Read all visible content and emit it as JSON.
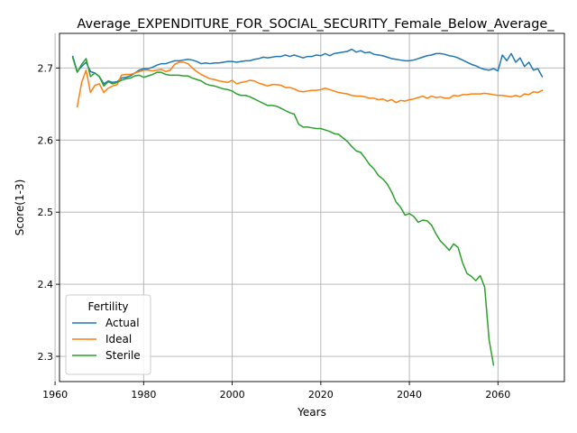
{
  "chart_data": {
    "type": "line",
    "title": "Average_EXPENDITURE_FOR_SOCIAL_SECURITY_Female_Below_Average_",
    "xlabel": "Years",
    "ylabel": "Score(1-3)",
    "xlim": [
      1961,
      2075
    ],
    "ylim": [
      2.265,
      2.748
    ],
    "xticks": [
      1960,
      1980,
      2000,
      2020,
      2040,
      2060
    ],
    "yticks": [
      2.3,
      2.4,
      2.5,
      2.6,
      2.7
    ],
    "xtick_labels": [
      "1960",
      "1980",
      "2000",
      "2020",
      "2040",
      "2060"
    ],
    "ytick_labels": [
      "2.3",
      "2.4",
      "2.5",
      "2.6",
      "2.7"
    ],
    "grid": true,
    "legend": {
      "title": "Fertility",
      "position": "lower-left"
    },
    "series": [
      {
        "name": "Actual",
        "color": "#1f77b4",
        "points": [
          [
            1964,
            2.716
          ],
          [
            1965,
            2.695
          ],
          [
            1966,
            2.702
          ],
          [
            1967,
            2.708
          ],
          [
            1968,
            2.695
          ],
          [
            1969,
            2.693
          ],
          [
            1970,
            2.688
          ],
          [
            1971,
            2.678
          ],
          [
            1972,
            2.682
          ],
          [
            1973,
            2.68
          ],
          [
            1974,
            2.681
          ],
          [
            1975,
            2.686
          ],
          [
            1976,
            2.687
          ],
          [
            1977,
            2.689
          ],
          [
            1978,
            2.693
          ],
          [
            1979,
            2.697
          ],
          [
            1980,
            2.699
          ],
          [
            1981,
            2.699
          ],
          [
            1982,
            2.701
          ],
          [
            1983,
            2.704
          ],
          [
            1984,
            2.706
          ],
          [
            1985,
            2.706
          ],
          [
            1986,
            2.708
          ],
          [
            1987,
            2.71
          ],
          [
            1988,
            2.71
          ],
          [
            1989,
            2.711
          ],
          [
            1990,
            2.712
          ],
          [
            1991,
            2.711
          ],
          [
            1992,
            2.709
          ],
          [
            1993,
            2.706
          ],
          [
            1994,
            2.707
          ],
          [
            1995,
            2.706
          ],
          [
            1996,
            2.707
          ],
          [
            1997,
            2.707
          ],
          [
            1998,
            2.708
          ],
          [
            1999,
            2.709
          ],
          [
            2000,
            2.709
          ],
          [
            2001,
            2.708
          ],
          [
            2002,
            2.709
          ],
          [
            2003,
            2.71
          ],
          [
            2004,
            2.71
          ],
          [
            2005,
            2.712
          ],
          [
            2006,
            2.713
          ],
          [
            2007,
            2.715
          ],
          [
            2008,
            2.714
          ],
          [
            2009,
            2.715
          ],
          [
            2010,
            2.716
          ],
          [
            2011,
            2.716
          ],
          [
            2012,
            2.718
          ],
          [
            2013,
            2.716
          ],
          [
            2014,
            2.718
          ],
          [
            2015,
            2.716
          ],
          [
            2016,
            2.714
          ],
          [
            2017,
            2.716
          ],
          [
            2018,
            2.716
          ],
          [
            2019,
            2.718
          ],
          [
            2020,
            2.717
          ],
          [
            2021,
            2.72
          ],
          [
            2022,
            2.717
          ],
          [
            2023,
            2.72
          ],
          [
            2024,
            2.721
          ],
          [
            2025,
            2.722
          ],
          [
            2026,
            2.723
          ],
          [
            2027,
            2.726
          ],
          [
            2028,
            2.722
          ],
          [
            2029,
            2.724
          ],
          [
            2030,
            2.721
          ],
          [
            2031,
            2.722
          ],
          [
            2032,
            2.719
          ],
          [
            2033,
            2.718
          ],
          [
            2034,
            2.717
          ],
          [
            2035,
            2.715
          ],
          [
            2036,
            2.713
          ],
          [
            2037,
            2.712
          ],
          [
            2038,
            2.711
          ],
          [
            2039,
            2.71
          ],
          [
            2040,
            2.71
          ],
          [
            2041,
            2.711
          ],
          [
            2042,
            2.713
          ],
          [
            2043,
            2.715
          ],
          [
            2044,
            2.717
          ],
          [
            2045,
            2.718
          ],
          [
            2046,
            2.72
          ],
          [
            2047,
            2.72
          ],
          [
            2048,
            2.719
          ],
          [
            2049,
            2.717
          ],
          [
            2050,
            2.716
          ],
          [
            2051,
            2.714
          ],
          [
            2052,
            2.711
          ],
          [
            2053,
            2.708
          ],
          [
            2054,
            2.705
          ],
          [
            2055,
            2.703
          ],
          [
            2056,
            2.7
          ],
          [
            2057,
            2.698
          ],
          [
            2058,
            2.697
          ],
          [
            2059,
            2.699
          ],
          [
            2060,
            2.696
          ],
          [
            2061,
            2.718
          ],
          [
            2062,
            2.71
          ],
          [
            2063,
            2.72
          ],
          [
            2064,
            2.708
          ],
          [
            2065,
            2.714
          ],
          [
            2066,
            2.702
          ],
          [
            2067,
            2.708
          ],
          [
            2068,
            2.697
          ],
          [
            2069,
            2.699
          ],
          [
            2070,
            2.688
          ]
        ]
      },
      {
        "name": "Ideal",
        "color": "#ff7f0e",
        "points": [
          [
            1965,
            2.646
          ],
          [
            1966,
            2.68
          ],
          [
            1967,
            2.697
          ],
          [
            1968,
            2.666
          ],
          [
            1969,
            2.676
          ],
          [
            1970,
            2.678
          ],
          [
            1971,
            2.666
          ],
          [
            1972,
            2.672
          ],
          [
            1973,
            2.675
          ],
          [
            1974,
            2.677
          ],
          [
            1975,
            2.69
          ],
          [
            1976,
            2.691
          ],
          [
            1977,
            2.691
          ],
          [
            1978,
            2.693
          ],
          [
            1979,
            2.695
          ],
          [
            1980,
            2.697
          ],
          [
            1981,
            2.697
          ],
          [
            1982,
            2.696
          ],
          [
            1983,
            2.697
          ],
          [
            1984,
            2.698
          ],
          [
            1985,
            2.695
          ],
          [
            1986,
            2.697
          ],
          [
            1987,
            2.705
          ],
          [
            1988,
            2.708
          ],
          [
            1989,
            2.708
          ],
          [
            1990,
            2.706
          ],
          [
            1991,
            2.7
          ],
          [
            1992,
            2.695
          ],
          [
            1993,
            2.691
          ],
          [
            1994,
            2.688
          ],
          [
            1995,
            2.685
          ],
          [
            1996,
            2.684
          ],
          [
            1997,
            2.682
          ],
          [
            1998,
            2.681
          ],
          [
            1999,
            2.68
          ],
          [
            2000,
            2.683
          ],
          [
            2001,
            2.678
          ],
          [
            2002,
            2.68
          ],
          [
            2003,
            2.681
          ],
          [
            2004,
            2.683
          ],
          [
            2005,
            2.682
          ],
          [
            2006,
            2.679
          ],
          [
            2007,
            2.677
          ],
          [
            2008,
            2.675
          ],
          [
            2009,
            2.677
          ],
          [
            2010,
            2.677
          ],
          [
            2011,
            2.676
          ],
          [
            2012,
            2.673
          ],
          [
            2013,
            2.673
          ],
          [
            2014,
            2.671
          ],
          [
            2015,
            2.668
          ],
          [
            2016,
            2.667
          ],
          [
            2017,
            2.668
          ],
          [
            2018,
            2.669
          ],
          [
            2019,
            2.669
          ],
          [
            2020,
            2.67
          ],
          [
            2021,
            2.672
          ],
          [
            2022,
            2.67
          ],
          [
            2023,
            2.668
          ],
          [
            2024,
            2.666
          ],
          [
            2025,
            2.665
          ],
          [
            2026,
            2.664
          ],
          [
            2027,
            2.662
          ],
          [
            2028,
            2.661
          ],
          [
            2029,
            2.661
          ],
          [
            2030,
            2.66
          ],
          [
            2031,
            2.658
          ],
          [
            2032,
            2.658
          ],
          [
            2033,
            2.656
          ],
          [
            2034,
            2.657
          ],
          [
            2035,
            2.654
          ],
          [
            2036,
            2.656
          ],
          [
            2037,
            2.652
          ],
          [
            2038,
            2.655
          ],
          [
            2039,
            2.654
          ],
          [
            2040,
            2.656
          ],
          [
            2041,
            2.657
          ],
          [
            2042,
            2.659
          ],
          [
            2043,
            2.661
          ],
          [
            2044,
            2.658
          ],
          [
            2045,
            2.661
          ],
          [
            2046,
            2.659
          ],
          [
            2047,
            2.66
          ],
          [
            2048,
            2.658
          ],
          [
            2049,
            2.658
          ],
          [
            2050,
            2.662
          ],
          [
            2051,
            2.661
          ],
          [
            2052,
            2.663
          ],
          [
            2053,
            2.663
          ],
          [
            2054,
            2.664
          ],
          [
            2055,
            2.664
          ],
          [
            2056,
            2.664
          ],
          [
            2057,
            2.665
          ],
          [
            2058,
            2.664
          ],
          [
            2059,
            2.663
          ],
          [
            2060,
            2.662
          ],
          [
            2061,
            2.662
          ],
          [
            2062,
            2.661
          ],
          [
            2063,
            2.66
          ],
          [
            2064,
            2.662
          ],
          [
            2065,
            2.66
          ],
          [
            2066,
            2.664
          ],
          [
            2067,
            2.663
          ],
          [
            2068,
            2.667
          ],
          [
            2069,
            2.666
          ],
          [
            2070,
            2.669
          ]
        ]
      },
      {
        "name": "Sterile",
        "color": "#2ca02c",
        "points": [
          [
            1964,
            2.714
          ],
          [
            1965,
            2.694
          ],
          [
            1966,
            2.705
          ],
          [
            1967,
            2.713
          ],
          [
            1968,
            2.688
          ],
          [
            1969,
            2.693
          ],
          [
            1970,
            2.688
          ],
          [
            1971,
            2.675
          ],
          [
            1972,
            2.681
          ],
          [
            1973,
            2.678
          ],
          [
            1974,
            2.68
          ],
          [
            1975,
            2.683
          ],
          [
            1976,
            2.685
          ],
          [
            1977,
            2.686
          ],
          [
            1978,
            2.689
          ],
          [
            1979,
            2.69
          ],
          [
            1980,
            2.687
          ],
          [
            1981,
            2.689
          ],
          [
            1982,
            2.691
          ],
          [
            1983,
            2.694
          ],
          [
            1984,
            2.694
          ],
          [
            1985,
            2.691
          ],
          [
            1986,
            2.69
          ],
          [
            1987,
            2.69
          ],
          [
            1988,
            2.69
          ],
          [
            1989,
            2.689
          ],
          [
            1990,
            2.689
          ],
          [
            1991,
            2.686
          ],
          [
            1992,
            2.684
          ],
          [
            1993,
            2.682
          ],
          [
            1994,
            2.678
          ],
          [
            1995,
            2.676
          ],
          [
            1996,
            2.675
          ],
          [
            1997,
            2.673
          ],
          [
            1998,
            2.671
          ],
          [
            1999,
            2.67
          ],
          [
            2000,
            2.668
          ],
          [
            2001,
            2.664
          ],
          [
            2002,
            2.662
          ],
          [
            2003,
            2.662
          ],
          [
            2004,
            2.66
          ],
          [
            2005,
            2.657
          ],
          [
            2006,
            2.654
          ],
          [
            2007,
            2.651
          ],
          [
            2008,
            2.648
          ],
          [
            2009,
            2.648
          ],
          [
            2010,
            2.647
          ],
          [
            2011,
            2.644
          ],
          [
            2012,
            2.641
          ],
          [
            2013,
            2.638
          ],
          [
            2014,
            2.636
          ],
          [
            2015,
            2.622
          ],
          [
            2016,
            2.618
          ],
          [
            2017,
            2.618
          ],
          [
            2018,
            2.617
          ],
          [
            2019,
            2.616
          ],
          [
            2020,
            2.616
          ],
          [
            2021,
            2.614
          ],
          [
            2022,
            2.612
          ],
          [
            2023,
            2.609
          ],
          [
            2024,
            2.608
          ],
          [
            2025,
            2.603
          ],
          [
            2026,
            2.598
          ],
          [
            2027,
            2.591
          ],
          [
            2028,
            2.585
          ],
          [
            2029,
            2.583
          ],
          [
            2030,
            2.575
          ],
          [
            2031,
            2.566
          ],
          [
            2032,
            2.56
          ],
          [
            2033,
            2.551
          ],
          [
            2034,
            2.546
          ],
          [
            2035,
            2.539
          ],
          [
            2036,
            2.528
          ],
          [
            2037,
            2.514
          ],
          [
            2038,
            2.507
          ],
          [
            2039,
            2.496
          ],
          [
            2040,
            2.498
          ],
          [
            2041,
            2.494
          ],
          [
            2042,
            2.486
          ],
          [
            2043,
            2.489
          ],
          [
            2044,
            2.488
          ],
          [
            2045,
            2.482
          ],
          [
            2046,
            2.47
          ],
          [
            2047,
            2.46
          ],
          [
            2048,
            2.454
          ],
          [
            2049,
            2.447
          ],
          [
            2050,
            2.456
          ],
          [
            2051,
            2.451
          ],
          [
            2052,
            2.43
          ],
          [
            2053,
            2.415
          ],
          [
            2054,
            2.411
          ],
          [
            2055,
            2.405
          ],
          [
            2056,
            2.412
          ],
          [
            2057,
            2.396
          ],
          [
            2058,
            2.323
          ],
          [
            2059,
            2.288
          ]
        ]
      }
    ]
  }
}
